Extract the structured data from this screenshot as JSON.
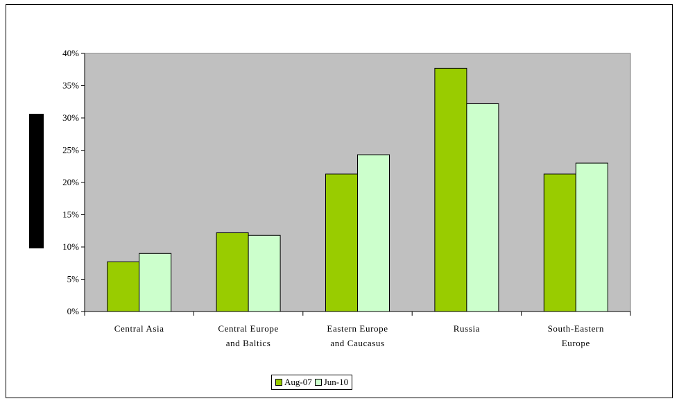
{
  "chart_data": {
    "type": "bar",
    "categories": [
      [
        "Central Asia"
      ],
      [
        "Central Europe",
        "and Baltics"
      ],
      [
        "Eastern Europe",
        "and Caucasus"
      ],
      [
        "Russia"
      ],
      [
        "South-Eastern",
        "Europe"
      ]
    ],
    "series": [
      {
        "name": "Aug-07",
        "color": "#99cc00",
        "values": [
          7.7,
          12.2,
          21.3,
          37.7,
          21.3
        ]
      },
      {
        "name": "Jun-10",
        "color": "#ccffcc",
        "values": [
          9.0,
          11.8,
          24.3,
          32.2,
          23.0
        ]
      }
    ],
    "yticks": [
      "0%",
      "5%",
      "10%",
      "15%",
      "20%",
      "25%",
      "30%",
      "35%",
      "40%"
    ],
    "ylim": [
      0,
      40
    ],
    "plot_background": "#c0c0c0",
    "grid": false,
    "legend_position": "bottom-center"
  }
}
